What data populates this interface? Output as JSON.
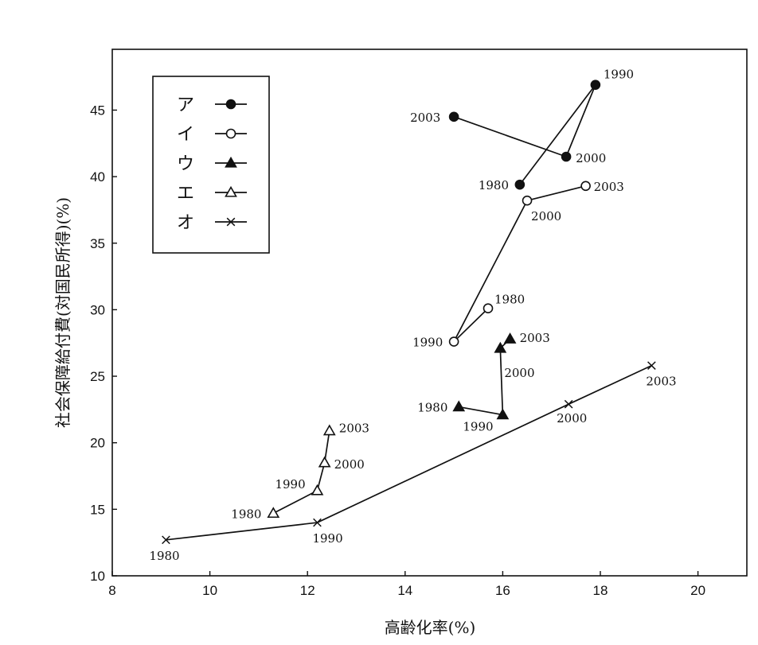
{
  "chart_data": {
    "type": "line",
    "xlabel": "高齢化率(%)",
    "ylabel": "社会保障給付費(対国民所得)(%)",
    "xlim": [
      8,
      21
    ],
    "ylim": [
      10,
      49.5
    ],
    "xticks": [
      8,
      10,
      12,
      14,
      16,
      18,
      20
    ],
    "yticks": [
      10,
      15,
      20,
      25,
      30,
      35,
      40,
      45
    ],
    "legend_position": "top-left",
    "series": [
      {
        "name": "ア",
        "marker": "filled-circle",
        "points": [
          {
            "year": "1980",
            "x": 16.35,
            "y": 39.4
          },
          {
            "year": "1990",
            "x": 17.9,
            "y": 46.9
          },
          {
            "year": "2000",
            "x": 17.3,
            "y": 41.5
          },
          {
            "year": "2003",
            "x": 15.0,
            "y": 44.5
          }
        ]
      },
      {
        "name": "イ",
        "marker": "open-circle",
        "points": [
          {
            "year": "1980",
            "x": 15.7,
            "y": 30.1
          },
          {
            "year": "1990",
            "x": 15.0,
            "y": 27.6
          },
          {
            "year": "2000",
            "x": 16.5,
            "y": 38.2
          },
          {
            "year": "2003",
            "x": 17.7,
            "y": 39.3
          }
        ]
      },
      {
        "name": "ウ",
        "marker": "filled-triangle",
        "points": [
          {
            "year": "1980",
            "x": 15.1,
            "y": 22.7
          },
          {
            "year": "1990",
            "x": 16.0,
            "y": 22.1
          },
          {
            "year": "2000",
            "x": 15.95,
            "y": 27.1
          },
          {
            "year": "2003",
            "x": 16.15,
            "y": 27.8
          }
        ]
      },
      {
        "name": "エ",
        "marker": "open-triangle",
        "points": [
          {
            "year": "1980",
            "x": 11.3,
            "y": 14.7
          },
          {
            "year": "1990",
            "x": 12.2,
            "y": 16.4
          },
          {
            "year": "2000",
            "x": 12.35,
            "y": 18.5
          },
          {
            "year": "2003",
            "x": 12.45,
            "y": 20.9
          }
        ]
      },
      {
        "name": "オ",
        "marker": "cross",
        "points": [
          {
            "year": "1980",
            "x": 9.1,
            "y": 12.7
          },
          {
            "year": "1990",
            "x": 12.2,
            "y": 14.0
          },
          {
            "year": "2000",
            "x": 17.35,
            "y": 22.9
          },
          {
            "year": "2003",
            "x": 19.05,
            "y": 25.8
          }
        ]
      }
    ]
  }
}
